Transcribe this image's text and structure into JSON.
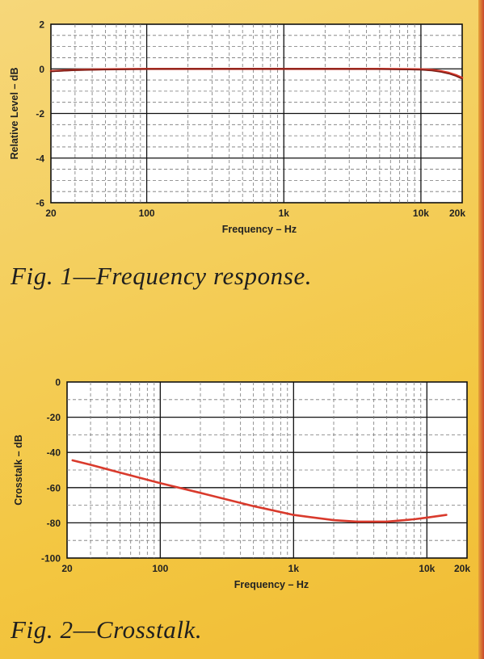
{
  "chart_data": [
    {
      "type": "line",
      "title": "",
      "xlabel": "Frequency – Hz",
      "ylabel": "Relative Level – dB",
      "xscale": "log",
      "xlim": [
        20,
        20000
      ],
      "ylim": [
        -6,
        2
      ],
      "xticks": [
        {
          "value": 20,
          "label": "20"
        },
        {
          "value": 100,
          "label": "100"
        },
        {
          "value": 1000,
          "label": "1k"
        },
        {
          "value": 10000,
          "label": "10k"
        },
        {
          "value": 20000,
          "label": "20k"
        }
      ],
      "yticks": [
        {
          "value": 2,
          "label": "2"
        },
        {
          "value": 0,
          "label": "0"
        },
        {
          "value": -2,
          "label": "-2"
        },
        {
          "value": -4,
          "label": "-4"
        },
        {
          "value": -6,
          "label": "-6"
        }
      ],
      "grid": true,
      "series": [
        {
          "color": "#d93a2c",
          "x": [
            20,
            30,
            50,
            100,
            200,
            500,
            1000,
            2000,
            5000,
            10000,
            12000,
            14000,
            16000,
            18000,
            20000
          ],
          "y": [
            -0.1,
            -0.05,
            -0.02,
            0,
            0,
            0,
            0,
            0,
            0,
            -0.02,
            -0.05,
            -0.1,
            -0.18,
            -0.28,
            -0.4
          ]
        },
        {
          "color": "#7a1e18",
          "x": [
            20,
            30,
            50,
            100,
            200,
            500,
            1000,
            2000,
            5000,
            10000,
            12000,
            14000,
            16000,
            18000,
            20000
          ],
          "y": [
            -0.12,
            -0.06,
            -0.03,
            -0.01,
            0,
            0,
            0,
            0,
            -0.01,
            -0.04,
            -0.08,
            -0.14,
            -0.22,
            -0.32,
            -0.45
          ]
        }
      ]
    },
    {
      "type": "line",
      "title": "",
      "xlabel": "Frequency – Hz",
      "ylabel": "Crosstalk – dB",
      "xscale": "log",
      "xlim": [
        20,
        20000
      ],
      "ylim": [
        -100,
        0
      ],
      "xticks": [
        {
          "value": 20,
          "label": "20"
        },
        {
          "value": 100,
          "label": "100"
        },
        {
          "value": 1000,
          "label": "1k"
        },
        {
          "value": 10000,
          "label": "10k"
        },
        {
          "value": 20000,
          "label": "20k"
        }
      ],
      "yticks": [
        {
          "value": 0,
          "label": "0"
        },
        {
          "value": -20,
          "label": "-20"
        },
        {
          "value": -40,
          "label": "-40"
        },
        {
          "value": -60,
          "label": "-60"
        },
        {
          "value": -80,
          "label": "-80"
        },
        {
          "value": -100,
          "label": "-100"
        }
      ],
      "grid": true,
      "series": [
        {
          "color": "#d93a2c",
          "x": [
            22,
            30,
            50,
            100,
            200,
            500,
            1000,
            2000,
            3000,
            5000,
            8000,
            10000,
            14000
          ],
          "y": [
            -44.5,
            -47,
            -51.5,
            -57.5,
            -63,
            -70.5,
            -75.5,
            -78.5,
            -79.3,
            -79.3,
            -78,
            -77,
            -75.5
          ]
        }
      ]
    }
  ],
  "captions": {
    "fig1": "Fig. 1—Frequency response.",
    "fig2": "Fig. 2—Crosstalk."
  }
}
